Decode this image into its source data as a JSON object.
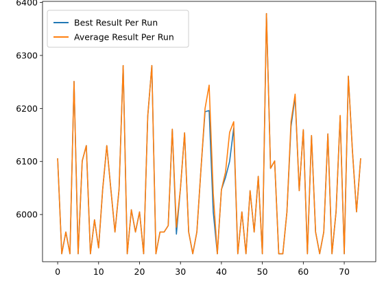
{
  "chart_data": {
    "type": "line",
    "title": "",
    "xlabel": "",
    "ylabel": "",
    "xlim": [
      -3.7,
      77.7
    ],
    "ylim": [
      5911,
      6402
    ],
    "x_ticks": [
      0,
      10,
      20,
      30,
      40,
      50,
      60,
      70
    ],
    "y_ticks": [
      6000,
      6100,
      6200,
      6300,
      6400
    ],
    "grid": false,
    "legend_position": "upper left",
    "x": [
      0,
      1,
      2,
      3,
      4,
      5,
      6,
      7,
      8,
      9,
      10,
      11,
      12,
      13,
      14,
      15,
      16,
      17,
      18,
      19,
      20,
      21,
      22,
      23,
      24,
      25,
      26,
      27,
      28,
      29,
      30,
      31,
      32,
      33,
      34,
      35,
      36,
      37,
      38,
      39,
      40,
      41,
      42,
      43,
      44,
      45,
      46,
      47,
      48,
      49,
      50,
      51,
      52,
      53,
      54,
      55,
      56,
      57,
      58,
      59,
      60,
      61,
      62,
      63,
      64,
      65,
      66,
      67,
      68,
      69,
      70,
      71,
      72,
      73,
      74
    ],
    "series": [
      {
        "name": "Best Result Per Run",
        "color": "#1f77b4",
        "values": [
          6105,
          5926,
          5967,
          5926,
          6251,
          5926,
          6101,
          6130,
          5926,
          5990,
          5937,
          6048,
          6130,
          6047,
          5967,
          6048,
          6281,
          5926,
          6009,
          5967,
          6005,
          5926,
          6185,
          6281,
          5926,
          5967,
          5967,
          5979,
          6161,
          5963,
          6050,
          6154,
          5967,
          5926,
          5967,
          6085,
          6194,
          6196,
          6005,
          5926,
          6047,
          6070,
          6100,
          6163,
          5926,
          6005,
          5926,
          6045,
          5967,
          6072,
          5926,
          6379,
          6087,
          6101,
          5926,
          5926,
          6005,
          6166,
          6222,
          6045,
          6160,
          5926,
          6149,
          5967,
          5926,
          5967,
          6152,
          5926,
          6005,
          6185,
          5926,
          6261,
          6120,
          6005,
          6105
        ]
      },
      {
        "name": "Average Result Per Run",
        "color": "#ff7f0e",
        "values": [
          6105,
          5926,
          5967,
          5926,
          6251,
          5926,
          6101,
          6130,
          5926,
          5990,
          5937,
          6048,
          6130,
          6047,
          5967,
          6048,
          6281,
          5926,
          6009,
          5967,
          6005,
          5926,
          6185,
          6281,
          5926,
          5967,
          5967,
          5979,
          6161,
          5976,
          6050,
          6154,
          5967,
          5926,
          5967,
          6085,
          6200,
          6244,
          6040,
          5926,
          6047,
          6080,
          6155,
          6175,
          5926,
          6005,
          5926,
          6045,
          5967,
          6072,
          5926,
          6379,
          6087,
          6101,
          5926,
          5926,
          6005,
          6175,
          6227,
          6045,
          6160,
          5926,
          6149,
          5967,
          5926,
          5967,
          6152,
          5926,
          6005,
          6187,
          5926,
          6261,
          6120,
          6005,
          6105
        ]
      }
    ]
  }
}
